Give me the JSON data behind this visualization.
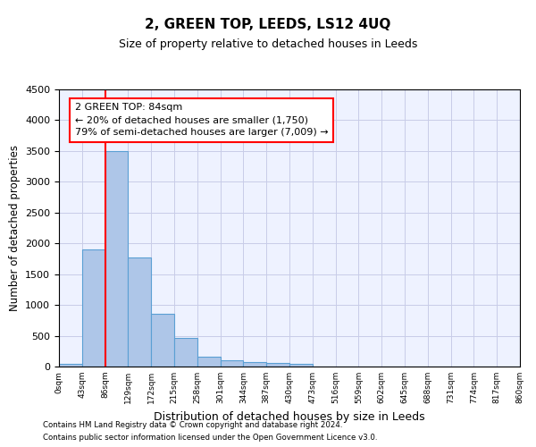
{
  "title": "2, GREEN TOP, LEEDS, LS12 4UQ",
  "subtitle": "Size of property relative to detached houses in Leeds",
  "xlabel": "Distribution of detached houses by size in Leeds",
  "ylabel": "Number of detached properties",
  "bar_values": [
    50,
    1900,
    3500,
    1770,
    850,
    460,
    160,
    100,
    70,
    55,
    40,
    0,
    0,
    0,
    0,
    0,
    0,
    0,
    0,
    0
  ],
  "bar_color": "#aec6e8",
  "bar_edge_color": "#5a9fd4",
  "x_labels": [
    "0sqm",
    "43sqm",
    "86sqm",
    "129sqm",
    "172sqm",
    "215sqm",
    "258sqm",
    "301sqm",
    "344sqm",
    "387sqm",
    "430sqm",
    "473sqm",
    "516sqm",
    "559sqm",
    "602sqm",
    "645sqm",
    "688sqm",
    "731sqm",
    "774sqm",
    "817sqm",
    "860sqm"
  ],
  "ylim": [
    0,
    4500
  ],
  "yticks": [
    0,
    500,
    1000,
    1500,
    2000,
    2500,
    3000,
    3500,
    4000,
    4500
  ],
  "red_line_x": 1.5,
  "annotation_text": "2 GREEN TOP: 84sqm\n← 20% of detached houses are smaller (1,750)\n79% of semi-detached houses are larger (7,009) →",
  "footer_line1": "Contains HM Land Registry data © Crown copyright and database right 2024.",
  "footer_line2": "Contains public sector information licensed under the Open Government Licence v3.0.",
  "plot_bg_color": "#eef2ff",
  "grid_color": "#c8cce8"
}
